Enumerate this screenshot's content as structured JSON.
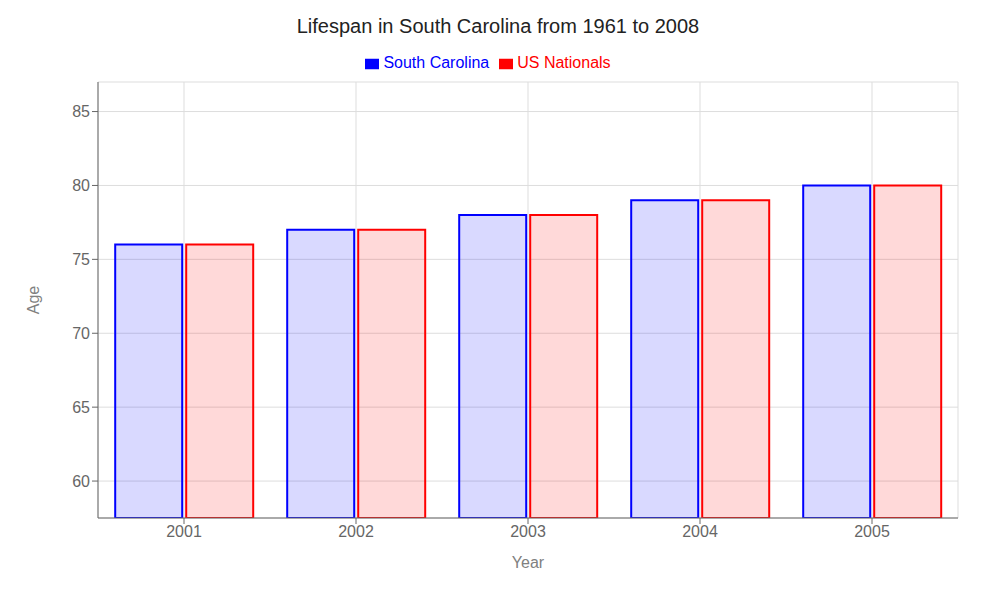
{
  "chart_data": {
    "type": "bar",
    "title": "Lifespan in South Carolina from 1961 to 2008",
    "x_label": "Year",
    "y_label": "Age",
    "categories": [
      "2001",
      "2002",
      "2003",
      "2004",
      "2005"
    ],
    "series": [
      {
        "name": "South Carolina",
        "color": "#0000ff",
        "values": [
          76,
          77,
          78,
          79,
          80
        ]
      },
      {
        "name": "US Nationals",
        "color": "#ff0000",
        "values": [
          76,
          77,
          78,
          79,
          80
        ]
      }
    ],
    "ylim": [
      57.5,
      87
    ],
    "yticks": [
      60,
      65,
      70,
      75,
      80,
      85
    ],
    "grid": true,
    "legend": "top"
  }
}
